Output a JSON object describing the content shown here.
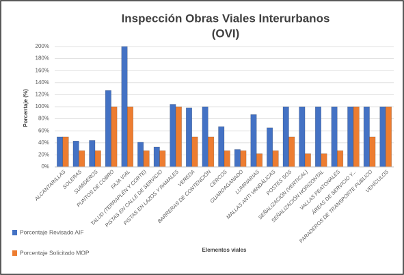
{
  "chart_data": {
    "type": "bar",
    "title_lines": [
      "Inspección Obras Viales Interurbanos",
      "(OVI)"
    ],
    "y_label": "Porcentaje (%)",
    "x_label": "Elementos viales",
    "categories": [
      "ALCANTARILLAS",
      "SOLERAS",
      "SUMIDEROS",
      "PUNTOS DE COBRO",
      "FAJA VIAL",
      "TALUD (TERRAPLÉN Y CORTE)",
      "PISTAS EN CALLE DE SERVICIO",
      "PISTAS EN LAZOS Y RAMALES",
      "VEREDA",
      "BARRERAS DE CONTENCIÓN",
      "CERCOS",
      "GUARDAGANADO",
      "LUMINARIAS",
      "MALLAS ANTI VANDÁLICAS",
      "POSTES SOS",
      "SEÑALIZACIÓN (VERTICAL)",
      "SEÑALIZACIÓN HORIZONTAL",
      "VALLAS PEATONALES",
      "ÁREAS DE SERVICIO Y...",
      "PARADEROS DE TRANSPORTE PÚBLICO",
      "VEHÍCULOS"
    ],
    "series": [
      {
        "name": "Porcentaje Revisado AIF",
        "color": "#4472c4",
        "values": [
          50,
          43,
          44,
          127,
          200,
          41,
          33,
          104,
          98,
          100,
          67,
          29,
          87,
          65,
          100,
          100,
          100,
          100,
          100,
          100,
          100
        ]
      },
      {
        "name": "Porcentaje Solicitado MOP",
        "color": "#ed7d31",
        "values": [
          50,
          27,
          27,
          100,
          100,
          27,
          27,
          100,
          50,
          50,
          27,
          27,
          22,
          27,
          50,
          22,
          22,
          27,
          100,
          50,
          100
        ]
      }
    ],
    "ylim": [
      0,
      200
    ],
    "yticks": [
      {
        "value": 0,
        "label": "0%"
      },
      {
        "value": 20,
        "label": "20%"
      },
      {
        "value": 40,
        "label": "40%"
      },
      {
        "value": 60,
        "label": "60%"
      },
      {
        "value": 80,
        "label": "80%"
      },
      {
        "value": 100,
        "label": "100%"
      },
      {
        "value": 120,
        "label": "120%"
      },
      {
        "value": 140,
        "label": "140%"
      },
      {
        "value": 160,
        "label": "160%"
      },
      {
        "value": 180,
        "label": "180%"
      },
      {
        "value": 200,
        "label": "200%"
      }
    ],
    "grid": true,
    "legend": "left"
  }
}
